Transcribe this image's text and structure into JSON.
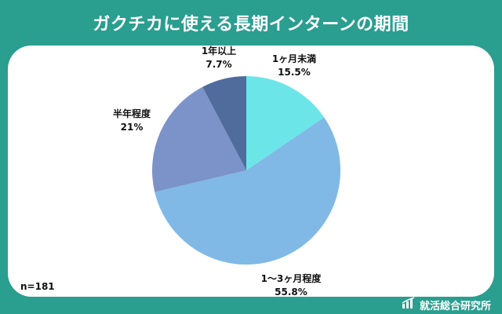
{
  "title": "ガクチカに使える長期インターンの期間",
  "note": "n=181",
  "footer": {
    "brand": "就活総合研究所",
    "logo_icon": "bar-chart-logo-icon"
  },
  "colors": {
    "frame": "#2a9e8f",
    "panel": "#ffffff"
  },
  "chart_data": {
    "type": "pie",
    "title": "ガクチカに使える長期インターンの期間",
    "slices": [
      {
        "label": "1ヶ月未満",
        "value_label": "15.5%",
        "value": 15.5,
        "color": "#6ce5e8"
      },
      {
        "label": "1～3ヶ月程度",
        "value_label": "55.8%",
        "value": 55.8,
        "color": "#80b9e6"
      },
      {
        "label": "半年程度",
        "value_label": "21%",
        "value": 21,
        "color": "#7b93c8"
      },
      {
        "label": "1年以上",
        "value_label": "7.7%",
        "value": 7.7,
        "color": "#4f6c9c"
      }
    ],
    "start": "12 o'clock",
    "direction": "clockwise",
    "legend": "none"
  }
}
